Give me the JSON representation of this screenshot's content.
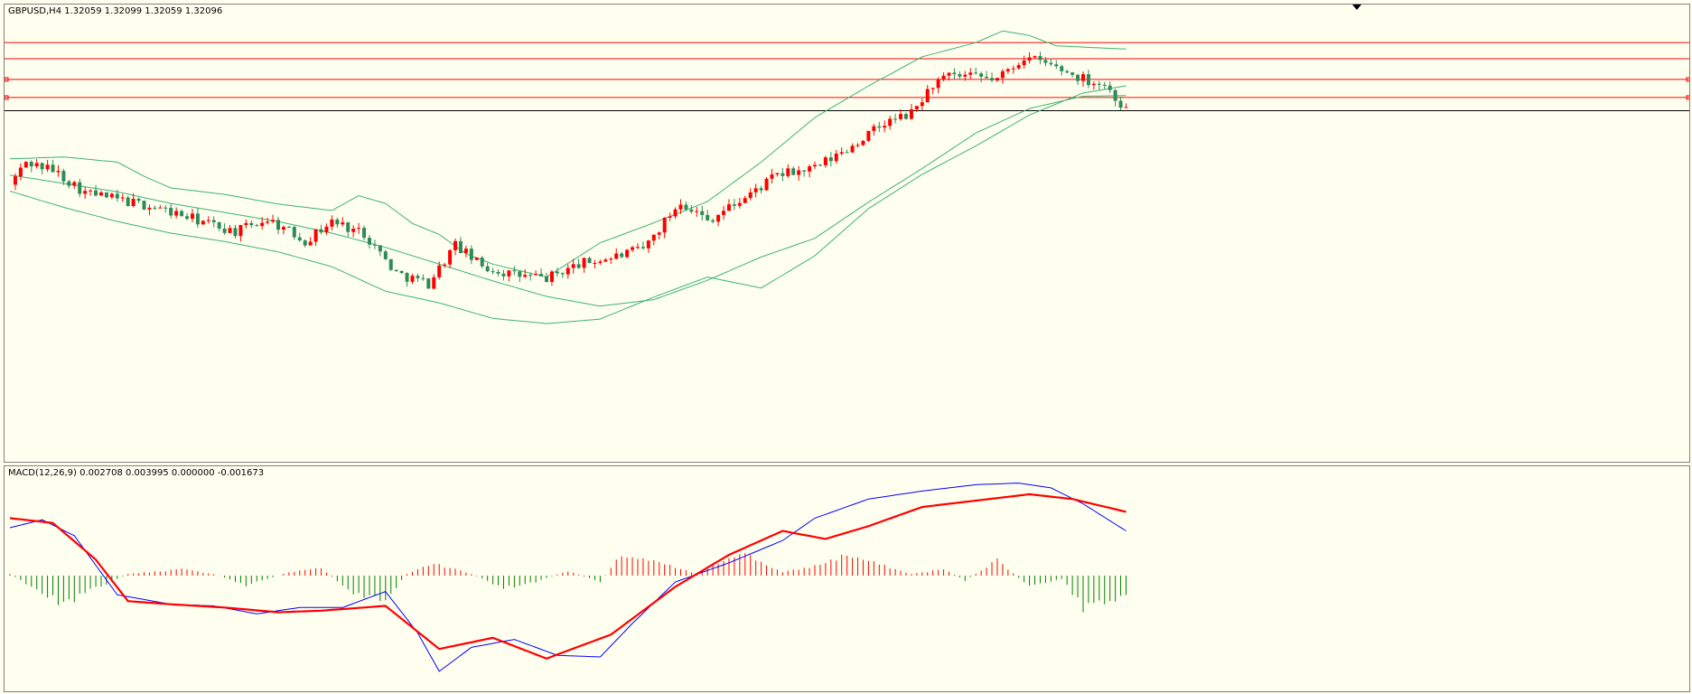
{
  "window": {
    "symbol_label": "GBPUSD,H4  1.32059 1.32099 1.32059 1.32096",
    "macd_label": "MACD(12,26,9) 0.002708 0.003995 0.000000 -0.001673"
  },
  "colors": {
    "background": "#fffff0",
    "bull_candle": "#ff0000",
    "bear_candle": "#2e8b57",
    "bollinger": "#3cb371",
    "level_line": "#ff0000",
    "price_line": "#000000",
    "macd_line": "#0000ff",
    "signal_line": "#ff0000",
    "hist_up": "#ff0000",
    "hist_down": "#008000"
  },
  "chart_data": [
    {
      "type": "candlestick",
      "title": "GBPUSD,H4",
      "ohlc_header": [
        1.32059,
        1.32099,
        1.32059,
        1.32096
      ],
      "ylim": [
        1.268,
        1.336
      ],
      "n_bars": 208,
      "levels": [
        1.3315,
        1.329,
        1.3258,
        1.323
      ],
      "last_price": 1.32096,
      "bollinger": {
        "period": 20,
        "middle": [
          [
            0,
            1.311
          ],
          [
            10,
            1.3097
          ],
          [
            20,
            1.3084
          ],
          [
            30,
            1.3066
          ],
          [
            40,
            1.3052
          ],
          [
            50,
            1.3038
          ],
          [
            60,
            1.302
          ],
          [
            70,
            1.2998
          ],
          [
            80,
            1.2972
          ],
          [
            90,
            1.2946
          ],
          [
            100,
            1.2922
          ],
          [
            110,
            1.2907
          ],
          [
            120,
            1.2917
          ],
          [
            130,
            1.2947
          ],
          [
            140,
            1.2983
          ],
          [
            150,
            1.3012
          ],
          [
            160,
            1.3068
          ],
          [
            170,
            1.312
          ],
          [
            180,
            1.3175
          ],
          [
            190,
            1.3213
          ],
          [
            200,
            1.3232
          ],
          [
            208,
            1.3233
          ]
        ],
        "upper": [
          [
            0,
            1.3135
          ],
          [
            10,
            1.3138
          ],
          [
            20,
            1.313
          ],
          [
            25,
            1.3108
          ],
          [
            30,
            1.309
          ],
          [
            40,
            1.308
          ],
          [
            50,
            1.3065
          ],
          [
            60,
            1.3055
          ],
          [
            65,
            1.3078
          ],
          [
            70,
            1.3066
          ],
          [
            75,
            1.3035
          ],
          [
            80,
            1.3018
          ],
          [
            85,
            1.2988
          ],
          [
            90,
            1.2972
          ],
          [
            100,
            1.2952
          ],
          [
            110,
            1.3005
          ],
          [
            120,
            1.3036
          ],
          [
            130,
            1.3069
          ],
          [
            140,
            1.313
          ],
          [
            150,
            1.3199
          ],
          [
            160,
            1.3248
          ],
          [
            170,
            1.3293
          ],
          [
            180,
            1.3315
          ],
          [
            185,
            1.3333
          ],
          [
            190,
            1.3326
          ],
          [
            195,
            1.331
          ],
          [
            208,
            1.3305
          ]
        ],
        "lower": [
          [
            0,
            1.3085
          ],
          [
            10,
            1.306
          ],
          [
            20,
            1.3038
          ],
          [
            30,
            1.302
          ],
          [
            40,
            1.3007
          ],
          [
            50,
            1.2991
          ],
          [
            60,
            1.2968
          ],
          [
            70,
            1.293
          ],
          [
            80,
            1.2912
          ],
          [
            90,
            1.2888
          ],
          [
            100,
            1.288
          ],
          [
            110,
            1.2887
          ],
          [
            120,
            1.2921
          ],
          [
            130,
            1.2952
          ],
          [
            140,
            1.2935
          ],
          [
            150,
            1.2985
          ],
          [
            160,
            1.3058
          ],
          [
            170,
            1.3111
          ],
          [
            180,
            1.3155
          ],
          [
            190,
            1.3203
          ],
          [
            200,
            1.3237
          ],
          [
            208,
            1.3248
          ]
        ]
      },
      "close_path": [
        [
          0,
          1.3095
        ],
        [
          3,
          1.313
        ],
        [
          8,
          1.3118
        ],
        [
          14,
          1.3083
        ],
        [
          20,
          1.3072
        ],
        [
          27,
          1.306
        ],
        [
          35,
          1.304
        ],
        [
          42,
          1.3022
        ],
        [
          48,
          1.3042
        ],
        [
          55,
          1.3008
        ],
        [
          60,
          1.3038
        ],
        [
          66,
          1.302
        ],
        [
          72,
          1.2958
        ],
        [
          78,
          1.2942
        ],
        [
          83,
          1.3002
        ],
        [
          88,
          1.2968
        ],
        [
          94,
          1.2955
        ],
        [
          100,
          1.295
        ],
        [
          106,
          1.2972
        ],
        [
          112,
          1.2982
        ],
        [
          118,
          1.2995
        ],
        [
          125,
          1.307
        ],
        [
          130,
          1.304
        ],
        [
          137,
          1.3075
        ],
        [
          143,
          1.311
        ],
        [
          150,
          1.312
        ],
        [
          156,
          1.315
        ],
        [
          163,
          1.319
        ],
        [
          168,
          1.3205
        ],
        [
          172,
          1.325
        ],
        [
          175,
          1.3262
        ],
        [
          178,
          1.3262
        ],
        [
          184,
          1.3258
        ],
        [
          189,
          1.3293
        ],
        [
          194,
          1.328
        ],
        [
          199,
          1.3262
        ],
        [
          204,
          1.325
        ],
        [
          208,
          1.321
        ]
      ]
    },
    {
      "type": "line",
      "title": "MACD(12,26,9)",
      "header_values": [
        0.002708,
        0.003995,
        0.0,
        -0.001673
      ],
      "ylim": [
        -0.0068,
        0.0064
      ],
      "n_bars": 208,
      "series": [
        {
          "name": "MACD",
          "values": [
            [
              0,
              0.003
            ],
            [
              6,
              0.0035
            ],
            [
              12,
              0.0025
            ],
            [
              20,
              -0.0012
            ],
            [
              30,
              -0.0018
            ],
            [
              38,
              -0.0019
            ],
            [
              46,
              -0.0024
            ],
            [
              54,
              -0.002
            ],
            [
              62,
              -0.002
            ],
            [
              70,
              -0.001
            ],
            [
              76,
              -0.0036
            ],
            [
              80,
              -0.006
            ],
            [
              86,
              -0.0045
            ],
            [
              94,
              -0.004
            ],
            [
              102,
              -0.005
            ],
            [
              110,
              -0.0051
            ],
            [
              116,
              -0.003
            ],
            [
              124,
              -0.0004
            ],
            [
              134,
              0.0008
            ],
            [
              144,
              0.0022
            ],
            [
              150,
              0.0036
            ],
            [
              160,
              0.0048
            ],
            [
              170,
              0.0053
            ],
            [
              180,
              0.0057
            ],
            [
              188,
              0.0058
            ],
            [
              194,
              0.0055
            ],
            [
              200,
              0.0045
            ],
            [
              208,
              0.0028
            ]
          ]
        },
        {
          "name": "Signal",
          "values": [
            [
              0,
              0.0036
            ],
            [
              8,
              0.0033
            ],
            [
              16,
              0.001
            ],
            [
              22,
              -0.0016
            ],
            [
              30,
              -0.0018
            ],
            [
              40,
              -0.002
            ],
            [
              50,
              -0.0023
            ],
            [
              58,
              -0.0022
            ],
            [
              70,
              -0.0019
            ],
            [
              80,
              -0.0046
            ],
            [
              90,
              -0.0039
            ],
            [
              100,
              -0.0052
            ],
            [
              112,
              -0.0037
            ],
            [
              124,
              -0.0007
            ],
            [
              134,
              0.0013
            ],
            [
              144,
              0.0028
            ],
            [
              152,
              0.0023
            ],
            [
              160,
              0.0031
            ],
            [
              170,
              0.0043
            ],
            [
              180,
              0.0047
            ],
            [
              190,
              0.0051
            ],
            [
              198,
              0.0048
            ],
            [
              208,
              0.004
            ]
          ]
        }
      ],
      "histogram_bands": [
        [
          0,
          0.0001
        ],
        [
          10,
          -0.0018
        ],
        [
          16,
          -0.0008
        ],
        [
          22,
          0.0001
        ],
        [
          32,
          0.0004
        ],
        [
          38,
          0.0001
        ],
        [
          44,
          -0.0006
        ],
        [
          52,
          0.0002
        ],
        [
          58,
          0.0005
        ],
        [
          64,
          -0.0012
        ],
        [
          70,
          -0.0015
        ],
        [
          74,
          0.0001
        ],
        [
          79,
          0.0008
        ],
        [
          86,
          0.0001
        ],
        [
          92,
          -0.0008
        ],
        [
          98,
          -0.0004
        ],
        [
          104,
          0.0003
        ],
        [
          110,
          -0.0004
        ],
        [
          114,
          0.0013
        ],
        [
          122,
          0.0007
        ],
        [
          128,
          0.0001
        ],
        [
          136,
          0.0015
        ],
        [
          144,
          0.0002
        ],
        [
          150,
          0.0006
        ],
        [
          156,
          0.0013
        ],
        [
          164,
          0.0005
        ],
        [
          168,
          0.0001
        ],
        [
          174,
          0.0004
        ],
        [
          178,
          -0.0003
        ],
        [
          184,
          0.001
        ],
        [
          190,
          -0.0007
        ],
        [
          196,
          -0.0002
        ],
        [
          200,
          -0.002
        ],
        [
          208,
          -0.0014
        ]
      ]
    }
  ]
}
